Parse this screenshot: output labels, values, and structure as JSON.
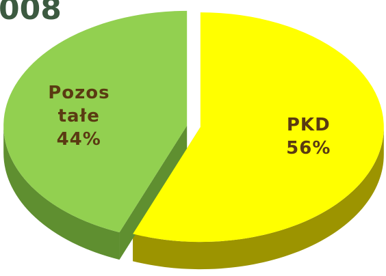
{
  "chart_data": {
    "type": "pie",
    "title": "008",
    "categories": [
      "PKD",
      "Pozos tałe"
    ],
    "values": [
      56,
      44
    ],
    "value_labels": [
      "56%",
      "44%"
    ],
    "colors": [
      "#ffff00",
      "#92d050"
    ]
  }
}
